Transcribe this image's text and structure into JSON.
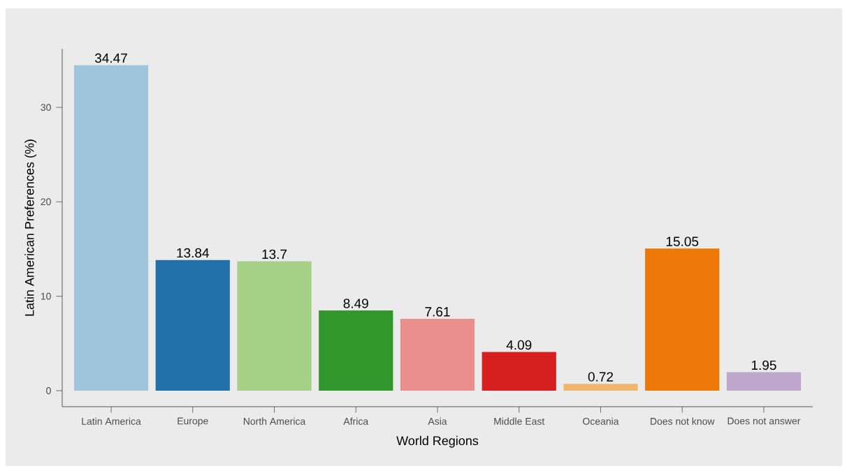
{
  "chart_data": {
    "type": "bar",
    "xlabel": "World Regions",
    "ylabel": "Latin American Preferences (%)",
    "categories": [
      "Latin America",
      "Europe",
      "North America",
      "Africa",
      "Asia",
      "Middle East",
      "Oceania",
      "Does not know",
      "Does not answer"
    ],
    "values": [
      34.47,
      13.84,
      13.7,
      8.49,
      7.61,
      4.09,
      0.72,
      15.05,
      1.95
    ],
    "colors": [
      "#9fc5dc",
      "#2270aa",
      "#a6d085",
      "#31962c",
      "#ea8f8e",
      "#d61f1f",
      "#f0b66a",
      "#ee7807",
      "#bea6cd"
    ],
    "ylim": [
      -1.7,
      36.2
    ],
    "yticks": [
      0,
      10,
      20,
      30
    ],
    "data_labels": true
  }
}
